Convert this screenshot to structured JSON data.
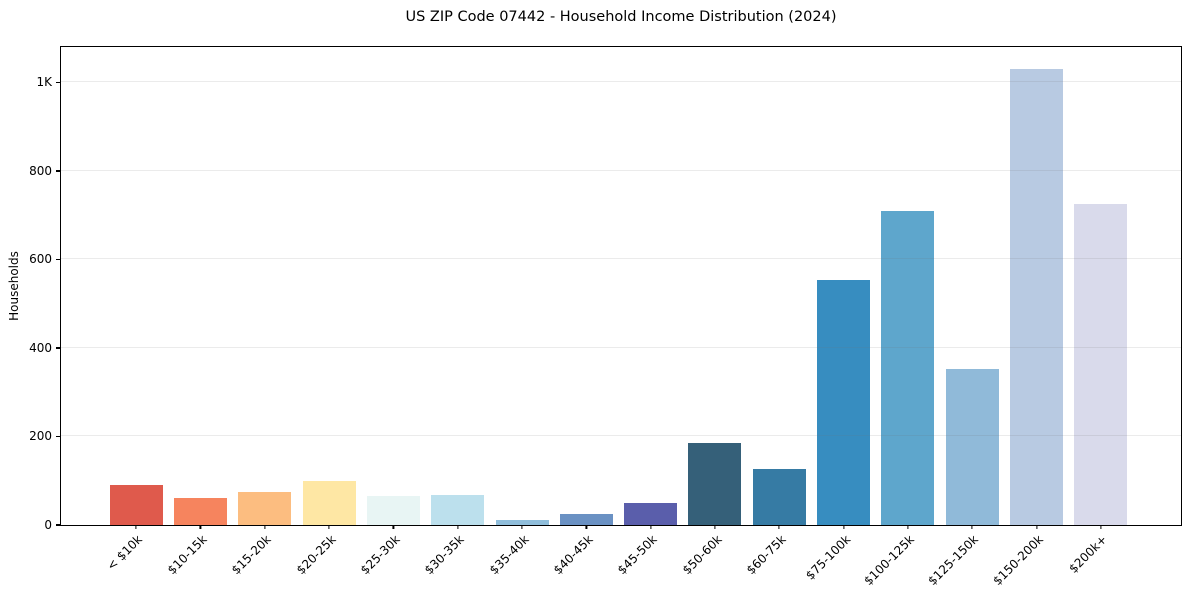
{
  "chart_data": {
    "type": "bar",
    "title": "US ZIP Code 07442 - Household Income Distribution (2024)",
    "xlabel": "",
    "ylabel": "Households",
    "ylim": [
      0,
      1080
    ],
    "grid": "horizontal-light",
    "legend": "none",
    "background": "#ffffff",
    "axis_color": "#000000",
    "gridline_color": "#e9e9e9",
    "yticks": [
      {
        "value": 0,
        "label": "0"
      },
      {
        "value": 200,
        "label": "200"
      },
      {
        "value": 400,
        "label": "400"
      },
      {
        "value": 600,
        "label": "600"
      },
      {
        "value": 800,
        "label": "800"
      },
      {
        "value": 1000,
        "label": "1K"
      }
    ],
    "categories": [
      "< $10k",
      "$10-15k",
      "$15-20k",
      "$20-25k",
      "$25-30k",
      "$30-35k",
      "$35-40k",
      "$40-45k",
      "$45-50k",
      "$50-60k",
      "$60-75k",
      "$75-100k",
      "$100-125k",
      "$125-150k",
      "$150-200k",
      "$200k+"
    ],
    "values": [
      90,
      60,
      75,
      100,
      65,
      68,
      12,
      26,
      50,
      185,
      126,
      553,
      710,
      352,
      1030,
      726
    ],
    "bar_colors": [
      "#df5a4c",
      "#f6845e",
      "#fcbd80",
      "#fee7a4",
      "#e8f5f4",
      "#bce0ed",
      "#90bedb",
      "#6a91c3",
      "#5a5eab",
      "#356079",
      "#367ba4",
      "#378dc0",
      "#5ea6cc",
      "#90bad9",
      "#b8cae2",
      "#d9daeb"
    ]
  }
}
